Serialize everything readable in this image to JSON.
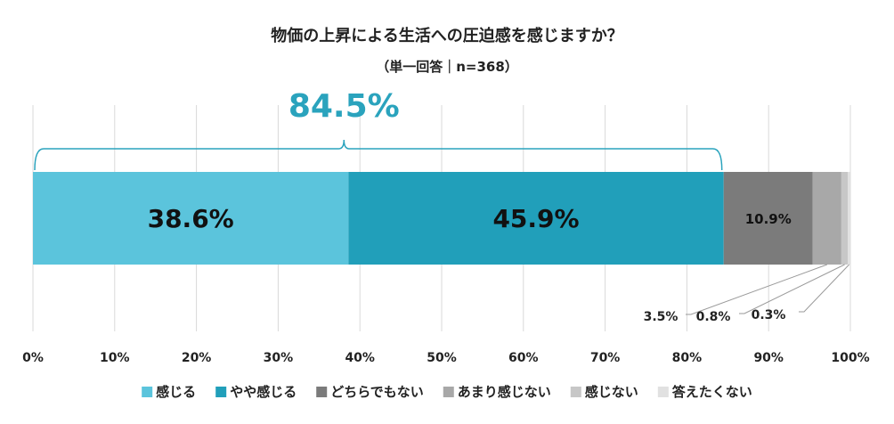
{
  "chart_data": {
    "type": "bar",
    "orientation": "horizontal",
    "stacked": true,
    "title": "物価の上昇による生活への圧迫感を感じますか？",
    "subtitle": "（単一回答｜n=368）",
    "xlim": [
      0,
      100
    ],
    "x_ticks": [
      "0%",
      "10%",
      "20%",
      "30%",
      "40%",
      "50%",
      "60%",
      "70%",
      "80%",
      "90%",
      "100%"
    ],
    "grid": true,
    "legend_position": "bottom",
    "series": [
      {
        "name": "感じる",
        "value": 38.6,
        "label": "38.6%",
        "color": "#5bc4dc"
      },
      {
        "name": "やや感じる",
        "value": 45.9,
        "label": "45.9%",
        "color": "#219fba"
      },
      {
        "name": "どちらでもない",
        "value": 10.9,
        "label": "10.9%",
        "color": "#7b7b7b"
      },
      {
        "name": "あまり感じない",
        "value": 3.5,
        "label": "3.5%",
        "color": "#a8a8a8"
      },
      {
        "name": "感じない",
        "value": 0.8,
        "label": "0.8%",
        "color": "#c7c7c7"
      },
      {
        "name": "答えたくない",
        "value": 0.3,
        "label": "0.3%",
        "color": "#e1e1e1"
      }
    ],
    "bracket": {
      "label": "84.5%",
      "from_series": 0,
      "to_series": 1,
      "color": "#2aa3bd"
    }
  }
}
